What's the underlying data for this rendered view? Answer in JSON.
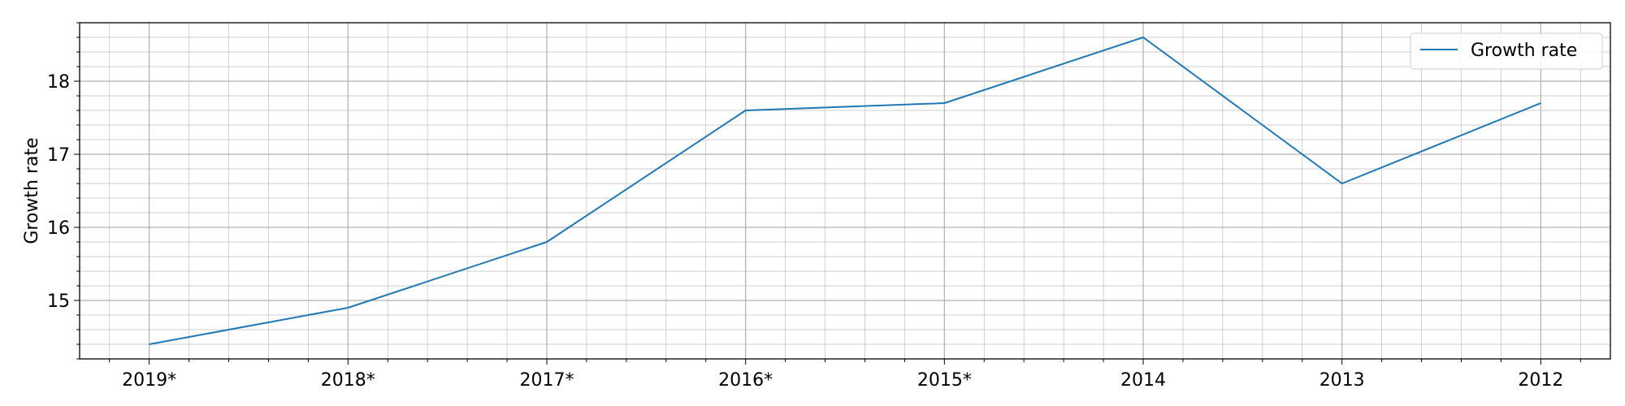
{
  "chart_data": {
    "type": "line",
    "categories": [
      "2019*",
      "2018*",
      "2017*",
      "2016*",
      "2015*",
      "2014",
      "2013",
      "2012"
    ],
    "series": [
      {
        "name": "Growth rate",
        "values": [
          14.4,
          14.9,
          15.8,
          17.6,
          17.7,
          18.6,
          16.6,
          17.7
        ]
      }
    ],
    "xlabel": "",
    "ylabel": "Growth rate",
    "ylim": [
      14.2,
      18.8
    ],
    "yticks": [
      15,
      16,
      17,
      18
    ],
    "y_minor_step": 0.2,
    "grid": true,
    "legend_position": "top-right",
    "colors": {
      "series": "#1f77b4",
      "grid": "#b0b0b0",
      "axis": "#000000"
    }
  }
}
